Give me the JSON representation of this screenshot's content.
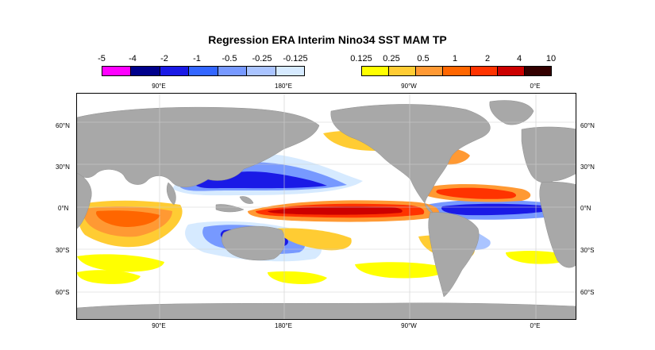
{
  "title": "Regression ERA Interim Nino34 SST MAM TP",
  "colorbar_negative": {
    "labels": [
      "-5",
      "-4",
      "-2",
      "-1",
      "-0.5",
      "-0.25",
      "-0.125"
    ],
    "colors": [
      "#ff00ff",
      "#00008b",
      "#1a1ae6",
      "#3366ff",
      "#7799ff",
      "#aac4ff",
      "#d6eaff"
    ]
  },
  "colorbar_positive": {
    "labels": [
      "0.125",
      "0.25",
      "0.5",
      "1",
      "2",
      "4",
      "10"
    ],
    "colors": [
      "#ffff00",
      "#ffcc33",
      "#ff9933",
      "#ff6600",
      "#ff3300",
      "#cc0000",
      "#330000"
    ]
  },
  "longitude_labels": [
    "90°E",
    "180°E",
    "90°W",
    "0°E"
  ],
  "latitude_labels": [
    "60°N",
    "30°N",
    "0°N",
    "30°S",
    "60°S"
  ],
  "map_colors": {
    "land": "#a8a8a8",
    "ocean": "#ffffff"
  }
}
